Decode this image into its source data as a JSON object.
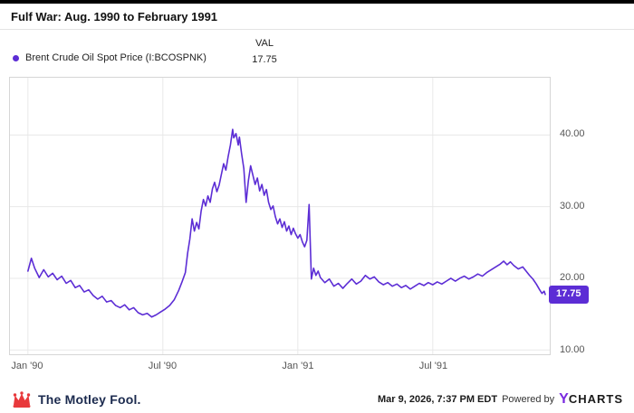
{
  "header": {
    "title": "Fulf War: Aug. 1990 to February 1991"
  },
  "legend": {
    "series_label": "Brent Crude Oil Spot Price (I:BCOSPNK)",
    "val_header": "VAL",
    "val_value": "17.75"
  },
  "chart_data": {
    "type": "line",
    "title": "Fulf War: Aug. 1990 to February 1991",
    "xlabel": "",
    "ylabel": "",
    "grid": true,
    "legend_position": "top-left",
    "xlim": [
      -0.8,
      23.2
    ],
    "ylim": [
      9.4,
      48
    ],
    "x_unit": "months since Jan 1990",
    "x_ticks": [
      {
        "pos": 0,
        "label": "Jan '90"
      },
      {
        "pos": 6,
        "label": "Jul '90"
      },
      {
        "pos": 12,
        "label": "Jan '91"
      },
      {
        "pos": 18,
        "label": "Jul '91"
      }
    ],
    "y_ticks": [
      {
        "value": 10,
        "label": "10.00"
      },
      {
        "value": 20,
        "label": "20.00"
      },
      {
        "value": 30,
        "label": "30.00"
      },
      {
        "value": 40,
        "label": "40.00"
      }
    ],
    "last_value_label": "17.75",
    "series": [
      {
        "name": "Brent Crude Oil Spot Price (I:BCOSPNK)",
        "color": "#5c2dd5",
        "points": [
          [
            0,
            21.0
          ],
          [
            0.15,
            22.8
          ],
          [
            0.3,
            21.4
          ],
          [
            0.5,
            20.1
          ],
          [
            0.7,
            21.2
          ],
          [
            0.9,
            20.2
          ],
          [
            1.1,
            20.7
          ],
          [
            1.3,
            19.8
          ],
          [
            1.5,
            20.3
          ],
          [
            1.7,
            19.3
          ],
          [
            1.9,
            19.7
          ],
          [
            2.1,
            18.7
          ],
          [
            2.3,
            19.0
          ],
          [
            2.5,
            18.1
          ],
          [
            2.7,
            18.4
          ],
          [
            2.9,
            17.6
          ],
          [
            3.1,
            17.1
          ],
          [
            3.3,
            17.5
          ],
          [
            3.5,
            16.7
          ],
          [
            3.7,
            16.9
          ],
          [
            3.9,
            16.2
          ],
          [
            4.1,
            15.9
          ],
          [
            4.3,
            16.3
          ],
          [
            4.5,
            15.6
          ],
          [
            4.7,
            15.9
          ],
          [
            4.9,
            15.2
          ],
          [
            5.1,
            14.9
          ],
          [
            5.3,
            15.1
          ],
          [
            5.5,
            14.6
          ],
          [
            5.7,
            14.9
          ],
          [
            5.9,
            15.3
          ],
          [
            6.1,
            15.7
          ],
          [
            6.3,
            16.2
          ],
          [
            6.5,
            17.0
          ],
          [
            6.7,
            18.3
          ],
          [
            6.85,
            19.5
          ],
          [
            7.0,
            20.8
          ],
          [
            7.1,
            23.5
          ],
          [
            7.2,
            25.5
          ],
          [
            7.3,
            28.3
          ],
          [
            7.4,
            26.6
          ],
          [
            7.5,
            27.8
          ],
          [
            7.6,
            26.9
          ],
          [
            7.7,
            29.4
          ],
          [
            7.8,
            31.0
          ],
          [
            7.9,
            30.1
          ],
          [
            8.0,
            31.5
          ],
          [
            8.1,
            30.6
          ],
          [
            8.2,
            32.5
          ],
          [
            8.3,
            33.4
          ],
          [
            8.4,
            32.1
          ],
          [
            8.5,
            33.0
          ],
          [
            8.6,
            34.5
          ],
          [
            8.7,
            36.0
          ],
          [
            8.8,
            35.1
          ],
          [
            8.9,
            37.0
          ],
          [
            9.0,
            38.6
          ],
          [
            9.1,
            40.8
          ],
          [
            9.15,
            39.6
          ],
          [
            9.25,
            40.2
          ],
          [
            9.35,
            38.6
          ],
          [
            9.4,
            39.7
          ],
          [
            9.5,
            37.4
          ],
          [
            9.6,
            35.3
          ],
          [
            9.7,
            30.6
          ],
          [
            9.8,
            33.6
          ],
          [
            9.9,
            35.7
          ],
          [
            10.0,
            34.4
          ],
          [
            10.1,
            33.1
          ],
          [
            10.2,
            34.0
          ],
          [
            10.3,
            32.2
          ],
          [
            10.4,
            33.1
          ],
          [
            10.5,
            31.6
          ],
          [
            10.6,
            32.4
          ],
          [
            10.7,
            30.6
          ],
          [
            10.8,
            29.6
          ],
          [
            10.9,
            30.1
          ],
          [
            11.0,
            28.6
          ],
          [
            11.1,
            27.6
          ],
          [
            11.2,
            28.3
          ],
          [
            11.3,
            27.1
          ],
          [
            11.4,
            27.9
          ],
          [
            11.5,
            26.6
          ],
          [
            11.6,
            27.3
          ],
          [
            11.7,
            26.1
          ],
          [
            11.8,
            27.0
          ],
          [
            11.9,
            26.2
          ],
          [
            12.0,
            25.6
          ],
          [
            12.1,
            26.1
          ],
          [
            12.2,
            25.1
          ],
          [
            12.3,
            24.4
          ],
          [
            12.4,
            25.3
          ],
          [
            12.5,
            30.3
          ],
          [
            12.6,
            19.9
          ],
          [
            12.7,
            21.4
          ],
          [
            12.8,
            20.4
          ],
          [
            12.9,
            21.0
          ],
          [
            13.0,
            20.1
          ],
          [
            13.2,
            19.4
          ],
          [
            13.4,
            19.9
          ],
          [
            13.6,
            18.9
          ],
          [
            13.8,
            19.3
          ],
          [
            14.0,
            18.6
          ],
          [
            14.2,
            19.3
          ],
          [
            14.4,
            19.9
          ],
          [
            14.6,
            19.2
          ],
          [
            14.8,
            19.6
          ],
          [
            15.0,
            20.4
          ],
          [
            15.2,
            19.9
          ],
          [
            15.4,
            20.2
          ],
          [
            15.6,
            19.5
          ],
          [
            15.8,
            19.1
          ],
          [
            16.0,
            19.4
          ],
          [
            16.2,
            18.9
          ],
          [
            16.4,
            19.2
          ],
          [
            16.6,
            18.7
          ],
          [
            16.8,
            19.0
          ],
          [
            17.0,
            18.5
          ],
          [
            17.2,
            18.9
          ],
          [
            17.4,
            19.3
          ],
          [
            17.6,
            19.0
          ],
          [
            17.8,
            19.4
          ],
          [
            18.0,
            19.1
          ],
          [
            18.2,
            19.5
          ],
          [
            18.4,
            19.2
          ],
          [
            18.6,
            19.6
          ],
          [
            18.8,
            20.0
          ],
          [
            19.0,
            19.6
          ],
          [
            19.2,
            20.0
          ],
          [
            19.4,
            20.3
          ],
          [
            19.6,
            19.9
          ],
          [
            19.8,
            20.2
          ],
          [
            20.0,
            20.6
          ],
          [
            20.2,
            20.3
          ],
          [
            20.4,
            20.8
          ],
          [
            20.6,
            21.2
          ],
          [
            20.8,
            21.6
          ],
          [
            21.0,
            22.0
          ],
          [
            21.15,
            22.4
          ],
          [
            21.3,
            21.9
          ],
          [
            21.45,
            22.3
          ],
          [
            21.6,
            21.8
          ],
          [
            21.8,
            21.3
          ],
          [
            22.0,
            21.6
          ],
          [
            22.15,
            21.0
          ],
          [
            22.3,
            20.4
          ],
          [
            22.45,
            19.9
          ],
          [
            22.6,
            19.2
          ],
          [
            22.75,
            18.4
          ],
          [
            22.85,
            17.9
          ],
          [
            22.95,
            18.2
          ],
          [
            23.0,
            17.75
          ]
        ]
      }
    ]
  },
  "footer": {
    "motley_fool": "The Motley Fool.",
    "timestamp": "Mar 9, 2026, 7:37 PM EDT",
    "powered_by": "Powered by",
    "ycharts_y": "Y",
    "ycharts_rest": "CHARTS"
  },
  "colors": {
    "line": "#5c2dd5",
    "badge": "#5c2dd5",
    "legend_dot": "#5c2dd5",
    "grid": "#e8e8e8",
    "plot_border": "#d6d6d6",
    "ycharts_y": "#7a2be0",
    "motley_red": "#e8393c",
    "top_strip": "#000000"
  }
}
